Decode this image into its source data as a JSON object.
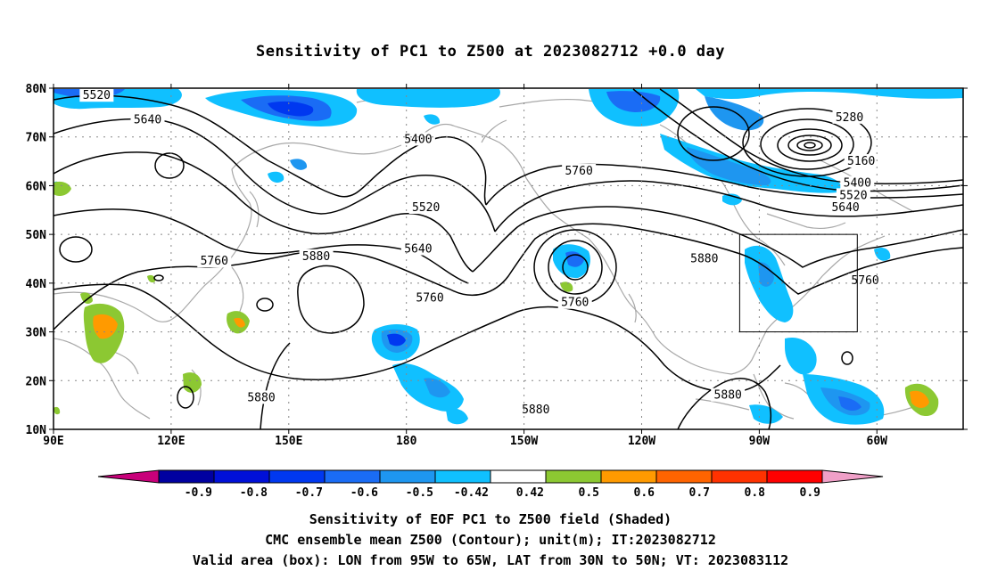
{
  "title": "Sensitivity of PC1 to Z500 at 2023082712 +0.0 day",
  "map": {
    "lat_labels": [
      "80N",
      "70N",
      "60N",
      "50N",
      "40N",
      "30N",
      "20N",
      "10N"
    ],
    "lon_labels": [
      "90E",
      "120E",
      "150E",
      "180",
      "150W",
      "120W",
      "90W",
      "60W"
    ],
    "lon_range": [
      90,
      322
    ],
    "lat_range": [
      10,
      80
    ],
    "grid": "dotted",
    "contour_interval": 120,
    "contour_labels": [
      {
        "text": "5520",
        "lon": 101,
        "lat": 78.5
      },
      {
        "text": "5640",
        "lon": 114,
        "lat": 73.5
      },
      {
        "text": "5400",
        "lon": 183,
        "lat": 69.5
      },
      {
        "text": "5760",
        "lon": 224,
        "lat": 63.0
      },
      {
        "text": "5520",
        "lon": 185,
        "lat": 55.5
      },
      {
        "text": "5640",
        "lon": 183,
        "lat": 47.0
      },
      {
        "text": "5760",
        "lon": 186,
        "lat": 37.0
      },
      {
        "text": "5760",
        "lon": 223,
        "lat": 36.0
      },
      {
        "text": "5760",
        "lon": 131,
        "lat": 44.5
      },
      {
        "text": "5880",
        "lon": 157,
        "lat": 45.5
      },
      {
        "text": "5880",
        "lon": 256,
        "lat": 45.0
      },
      {
        "text": "5760",
        "lon": 297,
        "lat": 40.5
      },
      {
        "text": "5280",
        "lon": 293,
        "lat": 74.0
      },
      {
        "text": "5160",
        "lon": 296,
        "lat": 65.0
      },
      {
        "text": "5400",
        "lon": 295,
        "lat": 60.5
      },
      {
        "text": "5520",
        "lon": 294,
        "lat": 58.0
      },
      {
        "text": "5640",
        "lon": 292,
        "lat": 55.5
      },
      {
        "text": "5880",
        "lon": 143,
        "lat": 16.5
      },
      {
        "text": "5880",
        "lon": 213,
        "lat": 14.0
      },
      {
        "text": "5880",
        "lon": 262,
        "lat": 17.0
      }
    ],
    "valid_box": {
      "lon": [
        265,
        295
      ],
      "lat": [
        30,
        50
      ]
    }
  },
  "colorbar": {
    "labels": [
      "-0.9",
      "-0.8",
      "-0.7",
      "-0.6",
      "-0.5",
      "-0.42",
      "0.42",
      "0.5",
      "0.6",
      "0.7",
      "0.8",
      "0.9"
    ],
    "colors": [
      "#0000a0",
      "#0010d8",
      "#0038f0",
      "#1a6cf5",
      "#1e96f0",
      "#10c0ff",
      "#ffffff",
      "#8cc832",
      "#ff9a00",
      "#ff6400",
      "#ff3200",
      "#ff0000"
    ],
    "low_end_color": "#c8007a",
    "high_end_color": "#f0a0c8"
  },
  "captions": {
    "line1": "Sensitivity of EOF PC1 to Z500 field (Shaded)",
    "line2": "CMC ensemble mean Z500 (Contour); unit(m); IT:2023082712",
    "line3": "Valid area (box): LON from 95W to 65W, LAT from 30N to 50N; VT: 2023083112"
  }
}
